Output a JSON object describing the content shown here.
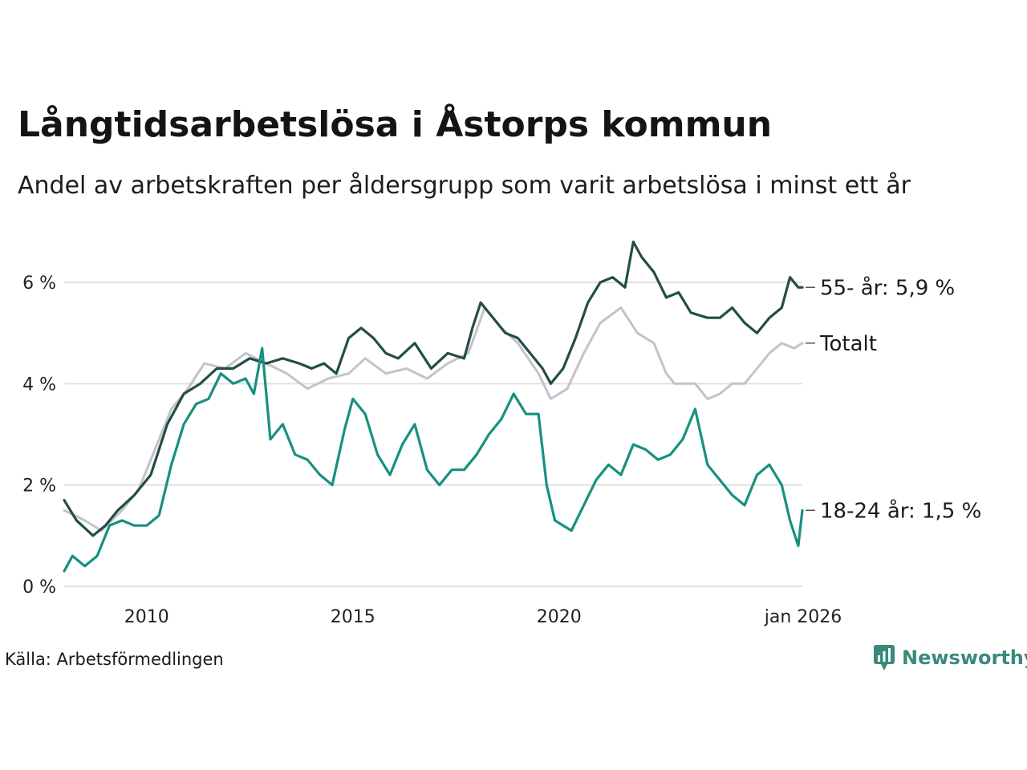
{
  "title": "Långtidsarbetslösa i Åstorps kommun",
  "subtitle": "Andel av arbetskraften per åldersgrupp som varit arbetslösa i minst ett år",
  "source": "Källa: Arbetsförmedlingen",
  "brand": "Newsworthy",
  "colors": {
    "senior": "#224e45",
    "total": "#c4c2cd",
    "young": "#16917f",
    "grid": "#e0e0e0",
    "brand": "#3a8a7c"
  },
  "chart_data": {
    "type": "line",
    "title": "Långtidsarbetslösa i Åstorps kommun",
    "xlabel": "",
    "ylabel": "",
    "ylim": [
      0,
      6.9
    ],
    "x_range": [
      2008.0,
      2025.9
    ],
    "y_ticks": [
      {
        "value": 0,
        "label": "0 %"
      },
      {
        "value": 2,
        "label": "2 %"
      },
      {
        "value": 4,
        "label": "4 %"
      },
      {
        "value": 6,
        "label": "6 %"
      }
    ],
    "x_ticks": [
      {
        "value": 2010,
        "label": "2010"
      },
      {
        "value": 2015,
        "label": "2015"
      },
      {
        "value": 2020,
        "label": "2020"
      },
      {
        "value": 2025.92,
        "label": "jan 2026"
      }
    ],
    "series": [
      {
        "name": "Totalt",
        "label": "Totalt",
        "color_key": "total",
        "points": [
          [
            2008.0,
            1.5
          ],
          [
            2008.5,
            1.3
          ],
          [
            2008.9,
            1.1
          ],
          [
            2009.4,
            1.5
          ],
          [
            2009.8,
            1.9
          ],
          [
            2010.2,
            2.7
          ],
          [
            2010.6,
            3.5
          ],
          [
            2011.0,
            3.9
          ],
          [
            2011.4,
            4.4
          ],
          [
            2011.9,
            4.3
          ],
          [
            2012.4,
            4.6
          ],
          [
            2012.9,
            4.4
          ],
          [
            2013.4,
            4.2
          ],
          [
            2013.9,
            3.9
          ],
          [
            2014.4,
            4.1
          ],
          [
            2014.9,
            4.2
          ],
          [
            2015.3,
            4.5
          ],
          [
            2015.8,
            4.2
          ],
          [
            2016.3,
            4.3
          ],
          [
            2016.8,
            4.1
          ],
          [
            2017.3,
            4.4
          ],
          [
            2017.8,
            4.6
          ],
          [
            2018.2,
            5.5
          ],
          [
            2018.6,
            5.1
          ],
          [
            2019.0,
            4.8
          ],
          [
            2019.5,
            4.2
          ],
          [
            2019.8,
            3.7
          ],
          [
            2020.2,
            3.9
          ],
          [
            2020.6,
            4.6
          ],
          [
            2021.0,
            5.2
          ],
          [
            2021.5,
            5.5
          ],
          [
            2021.9,
            5.0
          ],
          [
            2022.3,
            4.8
          ],
          [
            2022.6,
            4.2
          ],
          [
            2022.8,
            4.0
          ],
          [
            2023.3,
            4.0
          ],
          [
            2023.6,
            3.7
          ],
          [
            2023.9,
            3.8
          ],
          [
            2024.2,
            4.0
          ],
          [
            2024.5,
            4.0
          ],
          [
            2024.8,
            4.3
          ],
          [
            2025.1,
            4.6
          ],
          [
            2025.4,
            4.8
          ],
          [
            2025.7,
            4.7
          ],
          [
            2025.9,
            4.8
          ]
        ]
      },
      {
        "name": "55- år",
        "label": "55- år: 5,9 %",
        "color_key": "senior",
        "points": [
          [
            2008.0,
            1.7
          ],
          [
            2008.3,
            1.3
          ],
          [
            2008.7,
            1.0
          ],
          [
            2009.0,
            1.2
          ],
          [
            2009.3,
            1.5
          ],
          [
            2009.7,
            1.8
          ],
          [
            2010.1,
            2.2
          ],
          [
            2010.5,
            3.2
          ],
          [
            2010.9,
            3.8
          ],
          [
            2011.3,
            4.0
          ],
          [
            2011.7,
            4.3
          ],
          [
            2012.1,
            4.3
          ],
          [
            2012.5,
            4.5
          ],
          [
            2012.9,
            4.4
          ],
          [
            2013.3,
            4.5
          ],
          [
            2013.7,
            4.4
          ],
          [
            2014.0,
            4.3
          ],
          [
            2014.3,
            4.4
          ],
          [
            2014.6,
            4.2
          ],
          [
            2014.9,
            4.9
          ],
          [
            2015.2,
            5.1
          ],
          [
            2015.5,
            4.9
          ],
          [
            2015.8,
            4.6
          ],
          [
            2016.1,
            4.5
          ],
          [
            2016.5,
            4.8
          ],
          [
            2016.9,
            4.3
          ],
          [
            2017.3,
            4.6
          ],
          [
            2017.7,
            4.5
          ],
          [
            2017.9,
            5.1
          ],
          [
            2018.1,
            5.6
          ],
          [
            2018.4,
            5.3
          ],
          [
            2018.7,
            5.0
          ],
          [
            2019.0,
            4.9
          ],
          [
            2019.3,
            4.6
          ],
          [
            2019.6,
            4.3
          ],
          [
            2019.8,
            4.0
          ],
          [
            2020.1,
            4.3
          ],
          [
            2020.4,
            4.9
          ],
          [
            2020.7,
            5.6
          ],
          [
            2021.0,
            6.0
          ],
          [
            2021.3,
            6.1
          ],
          [
            2021.6,
            5.9
          ],
          [
            2021.8,
            6.8
          ],
          [
            2022.0,
            6.5
          ],
          [
            2022.3,
            6.2
          ],
          [
            2022.6,
            5.7
          ],
          [
            2022.9,
            5.8
          ],
          [
            2023.2,
            5.4
          ],
          [
            2023.6,
            5.3
          ],
          [
            2023.9,
            5.3
          ],
          [
            2024.2,
            5.5
          ],
          [
            2024.5,
            5.2
          ],
          [
            2024.8,
            5.0
          ],
          [
            2025.1,
            5.3
          ],
          [
            2025.4,
            5.5
          ],
          [
            2025.6,
            6.1
          ],
          [
            2025.8,
            5.9
          ],
          [
            2025.9,
            5.9
          ]
        ]
      },
      {
        "name": "18-24 år",
        "label": "18-24 år: 1,5 %",
        "color_key": "young",
        "points": [
          [
            2008.0,
            0.3
          ],
          [
            2008.2,
            0.6
          ],
          [
            2008.5,
            0.4
          ],
          [
            2008.8,
            0.6
          ],
          [
            2009.1,
            1.2
          ],
          [
            2009.4,
            1.3
          ],
          [
            2009.7,
            1.2
          ],
          [
            2010.0,
            1.2
          ],
          [
            2010.3,
            1.4
          ],
          [
            2010.6,
            2.4
          ],
          [
            2010.9,
            3.2
          ],
          [
            2011.2,
            3.6
          ],
          [
            2011.5,
            3.7
          ],
          [
            2011.8,
            4.2
          ],
          [
            2012.1,
            4.0
          ],
          [
            2012.4,
            4.1
          ],
          [
            2012.6,
            3.8
          ],
          [
            2012.8,
            4.7
          ],
          [
            2013.0,
            2.9
          ],
          [
            2013.3,
            3.2
          ],
          [
            2013.6,
            2.6
          ],
          [
            2013.9,
            2.5
          ],
          [
            2014.2,
            2.2
          ],
          [
            2014.5,
            2.0
          ],
          [
            2014.8,
            3.1
          ],
          [
            2015.0,
            3.7
          ],
          [
            2015.3,
            3.4
          ],
          [
            2015.6,
            2.6
          ],
          [
            2015.9,
            2.2
          ],
          [
            2016.2,
            2.8
          ],
          [
            2016.5,
            3.2
          ],
          [
            2016.8,
            2.3
          ],
          [
            2017.1,
            2.0
          ],
          [
            2017.4,
            2.3
          ],
          [
            2017.7,
            2.3
          ],
          [
            2018.0,
            2.6
          ],
          [
            2018.3,
            3.0
          ],
          [
            2018.6,
            3.3
          ],
          [
            2018.9,
            3.8
          ],
          [
            2019.2,
            3.4
          ],
          [
            2019.5,
            3.4
          ],
          [
            2019.7,
            2.0
          ],
          [
            2019.9,
            1.3
          ],
          [
            2020.1,
            1.2
          ],
          [
            2020.3,
            1.1
          ],
          [
            2020.6,
            1.6
          ],
          [
            2020.9,
            2.1
          ],
          [
            2021.2,
            2.4
          ],
          [
            2021.5,
            2.2
          ],
          [
            2021.8,
            2.8
          ],
          [
            2022.1,
            2.7
          ],
          [
            2022.4,
            2.5
          ],
          [
            2022.7,
            2.6
          ],
          [
            2023.0,
            2.9
          ],
          [
            2023.3,
            3.5
          ],
          [
            2023.6,
            2.4
          ],
          [
            2023.9,
            2.1
          ],
          [
            2024.2,
            1.8
          ],
          [
            2024.5,
            1.6
          ],
          [
            2024.8,
            2.2
          ],
          [
            2025.1,
            2.4
          ],
          [
            2025.4,
            2.0
          ],
          [
            2025.6,
            1.3
          ],
          [
            2025.8,
            0.8
          ],
          [
            2025.9,
            1.5
          ]
        ]
      }
    ]
  }
}
